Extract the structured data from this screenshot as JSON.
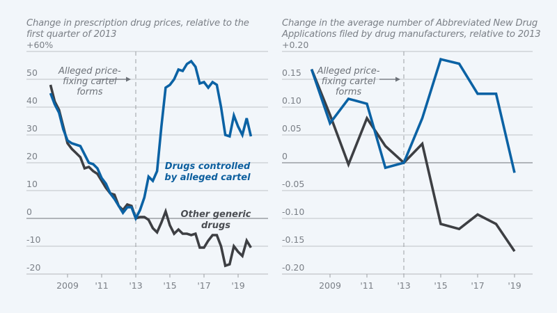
{
  "colors": {
    "background": "#f2f6fa",
    "cartel": "#0b62a4",
    "other": "#3d3f43",
    "grid": "#c9ccd0",
    "text": "#7a7f86"
  },
  "chart_data": [
    {
      "type": "line",
      "title": "Change in prescription drug prices, relative to the first quarter of 2013",
      "xlabel": "",
      "ylabel": "",
      "ylim": [
        -20,
        60
      ],
      "xlim": [
        2007.6,
        2020.5
      ],
      "y_ticks": [
        60,
        50,
        40,
        30,
        20,
        10,
        0,
        -10,
        -20
      ],
      "y_tick_labels": [
        "+60%",
        "50",
        "40",
        "30",
        "20",
        "10",
        "0",
        "-10",
        "-20"
      ],
      "x_ticks": [
        2009,
        2011,
        2013,
        2015,
        2017,
        2019
      ],
      "x_tick_labels": [
        "2009",
        "'11",
        "'13",
        "'15",
        "'17",
        "'19"
      ],
      "grid": true,
      "vline": {
        "x": 2013,
        "style": "dashed"
      },
      "annotation": {
        "lines": [
          "Alleged price-",
          "fixing cartel",
          "forms"
        ],
        "x": 2010.3,
        "arrow_to": 2013
      },
      "x_start": 2008.0,
      "x_step": 0.25,
      "series": [
        {
          "name": "Drugs controlled by alleged cartel",
          "label_lines": [
            "Drugs controlled",
            "by alleged cartel"
          ],
          "color": "#0b62a4",
          "values": [
            45,
            41,
            38,
            32,
            28,
            27,
            26.5,
            26,
            23,
            20,
            19.5,
            18,
            14.5,
            12.5,
            9,
            7,
            4.5,
            2,
            4,
            4,
            0,
            3,
            7.5,
            15,
            13.5,
            17,
            33,
            47,
            48,
            50,
            53.5,
            53,
            55.5,
            56.5,
            54.5,
            48.5,
            49,
            47,
            49,
            48,
            40,
            30,
            29.5,
            37,
            33,
            30,
            36,
            29.5
          ]
        },
        {
          "name": "Other generic drugs",
          "label_lines": [
            "Other generic",
            "drugs"
          ],
          "color": "#3d3f43",
          "values": [
            48,
            42,
            39,
            33,
            27,
            25,
            23.5,
            22,
            18,
            18.5,
            17,
            16,
            13.5,
            11,
            9,
            8.5,
            4.5,
            3,
            5,
            4.5,
            0,
            0.5,
            0.5,
            -0.5,
            -3.5,
            -5,
            -1.5,
            2.5,
            -2.5,
            -5.5,
            -4,
            -5.5,
            -5.5,
            -6,
            -5.5,
            -10.5,
            -10.5,
            -8,
            -6,
            -6,
            -10,
            -17,
            -16.5,
            -10,
            -12,
            -13.5,
            -8,
            -10.5
          ]
        }
      ]
    },
    {
      "type": "line",
      "title": "Change in the average number of Abbreviated New Drug Applications filed by drug manufacturers, relative to 2013",
      "xlabel": "",
      "ylabel": "",
      "ylim": [
        -0.2,
        0.2
      ],
      "xlim": [
        2006.8,
        2020.5
      ],
      "y_ticks": [
        0.2,
        0.15,
        0.1,
        0.05,
        0,
        -0.05,
        -0.1,
        -0.15,
        -0.2
      ],
      "y_tick_labels": [
        "+0.20",
        "0.15",
        "0.10",
        "0.05",
        "0",
        "-0.05",
        "-0.10",
        "-0.15",
        "-0.20"
      ],
      "x_ticks": [
        2009,
        2011,
        2013,
        2015,
        2017,
        2019
      ],
      "x_tick_labels": [
        "2009",
        "'11",
        "'13",
        "'15",
        "'17",
        "'19"
      ],
      "grid": true,
      "vline": {
        "x": 2013,
        "style": "dashed"
      },
      "annotation": {
        "lines": [
          "Alleged price-",
          "fixing cartel",
          "forms"
        ],
        "x": 2010.0,
        "arrow_to": 2013
      },
      "x": [
        2008,
        2009,
        2010,
        2011,
        2012,
        2013,
        2014,
        2015,
        2016,
        2017,
        2018,
        2019
      ],
      "series": [
        {
          "name": "Drugs controlled by alleged cartel",
          "color": "#0b62a4",
          "values": [
            0.168,
            0.071,
            0.115,
            0.106,
            -0.009,
            0,
            0.08,
            0.186,
            0.178,
            0.124,
            0.124,
            -0.018
          ]
        },
        {
          "name": "Other generic drugs",
          "color": "#3d3f43",
          "values": [
            0.168,
            0.086,
            -0.003,
            0.08,
            0.03,
            0,
            0.034,
            -0.11,
            -0.119,
            -0.093,
            -0.11,
            -0.159
          ]
        }
      ]
    }
  ]
}
